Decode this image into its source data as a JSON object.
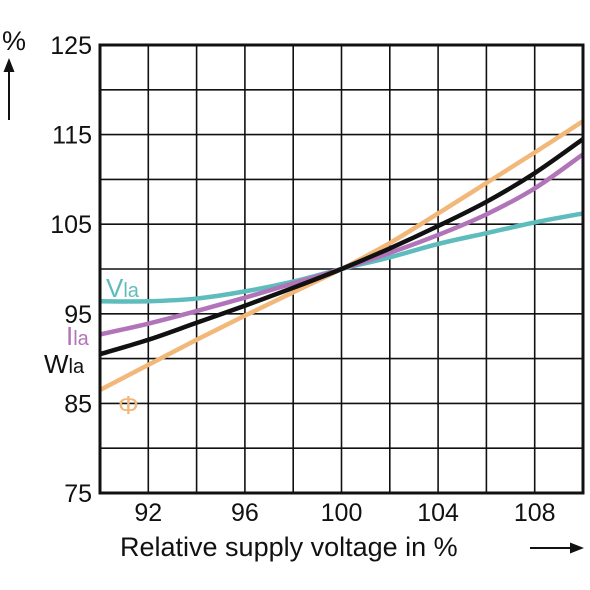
{
  "chart_data": {
    "type": "line",
    "title": "",
    "xlabel": "Relative supply voltage in %",
    "ylabel": "%",
    "xlim": [
      90,
      110
    ],
    "ylim": [
      75,
      125
    ],
    "x_ticks": [
      92,
      96,
      100,
      104,
      108
    ],
    "y_ticks": [
      75,
      85,
      95,
      105,
      115,
      125
    ],
    "grid": true,
    "series": [
      {
        "name": "Vla",
        "label_main": "V",
        "label_sub": "la",
        "color": "#5fbcbc",
        "x": [
          90,
          92,
          94,
          96,
          98,
          100,
          102,
          104,
          106,
          108,
          110
        ],
        "y": [
          96.4,
          96.4,
          96.7,
          97.5,
          98.6,
          100,
          101.3,
          102.8,
          104.0,
          105.2,
          106.2
        ]
      },
      {
        "name": "Ila",
        "label_main": "I",
        "label_sub": "la",
        "color": "#b274b8",
        "x": [
          90,
          92,
          94,
          96,
          98,
          100,
          102,
          104,
          106,
          108,
          110
        ],
        "y": [
          92.7,
          93.9,
          95.3,
          96.8,
          98.4,
          100,
          101.8,
          103.8,
          106.1,
          109.0,
          112.8
        ]
      },
      {
        "name": "Wla",
        "label_main": "W",
        "label_sub": "la",
        "color": "#111111",
        "x": [
          90,
          92,
          94,
          96,
          98,
          100,
          102,
          104,
          106,
          108,
          110
        ],
        "y": [
          90.5,
          92.1,
          94.0,
          95.9,
          97.9,
          100,
          102.3,
          104.8,
          107.5,
          110.7,
          114.5
        ]
      },
      {
        "name": "Φ",
        "label_main": "Φ",
        "label_sub": "",
        "color": "#f2b87a",
        "x": [
          90,
          92,
          94,
          96,
          98,
          100,
          102,
          104,
          106,
          108,
          110
        ],
        "y": [
          86.5,
          89.3,
          92.1,
          94.8,
          97.4,
          100,
          102.9,
          106.2,
          109.6,
          113.0,
          116.5
        ]
      }
    ]
  }
}
